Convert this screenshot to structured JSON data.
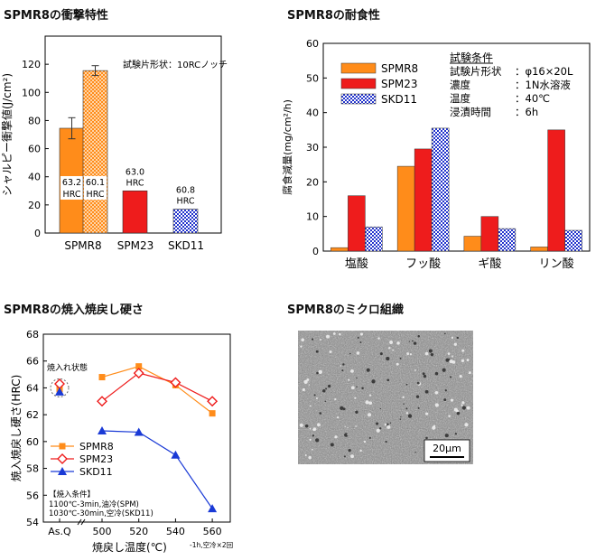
{
  "page_titles": [
    "SPMR8の衝撃特性",
    "SPMR8の耐食性",
    "SPMR8の焼入焼戻し硬さ",
    "SPMR8のミクロ組織"
  ],
  "chart_data": [
    {
      "type": "bar",
      "title": "SPMR8の衝撃特性",
      "ylabel": "シャルピー衝撃値(J/cm²)",
      "xlabel": "",
      "ylim": [
        0,
        140
      ],
      "yticks": [
        "0",
        "20",
        "40",
        "60",
        "80",
        "100",
        "120"
      ],
      "categories": [
        "SPMR8",
        "SPM23",
        "SKD11"
      ],
      "bars": [
        {
          "category": "SPMR8",
          "value": 74.5,
          "error": 7.5,
          "style": "orange",
          "hrc_line1": "63.2",
          "hrc_line2": "HRC"
        },
        {
          "category": "SPMR8",
          "value": 115.5,
          "error": 3.5,
          "style": "orange-hatched",
          "hrc_line1": "60.1",
          "hrc_line2": "HRC"
        },
        {
          "category": "SPM23",
          "value": 30,
          "style": "red",
          "hrc_line1": "63.0",
          "hrc_line2": "HRC"
        },
        {
          "category": "SKD11",
          "value": 17,
          "style": "blue-checker",
          "hrc_line1": "60.8",
          "hrc_line2": "HRC"
        }
      ],
      "annotation": "試験片形状：10RCノッチ",
      "colors": {
        "orange": "#ff8c1a",
        "red": "#ee1c1c",
        "blue": "#3344cc"
      }
    },
    {
      "type": "bar",
      "title": "SPMR8の耐食性",
      "ylabel": "腐食減量(mg/cm²/h)",
      "xlabel": "",
      "ylim": [
        0,
        60
      ],
      "yticks": [
        "0",
        "10",
        "20",
        "30",
        "40",
        "50",
        "60"
      ],
      "categories": [
        "塩酸",
        "フッ酸",
        "ギ酸",
        "リン酸"
      ],
      "series": [
        {
          "name": "SPMR8",
          "values": [
            1.0,
            24.5,
            4.3,
            1.2
          ],
          "style": "orange"
        },
        {
          "name": "SPM23",
          "values": [
            16.0,
            29.5,
            10.0,
            35.0
          ],
          "style": "red"
        },
        {
          "name": "SKD11",
          "values": [
            7.0,
            35.5,
            6.5,
            6.0
          ],
          "style": "blue-checker"
        }
      ],
      "conditions": {
        "heading": "試験条件",
        "rows": [
          {
            "label": "試験片形状",
            "value": "：φ16×20L"
          },
          {
            "label": "濃度",
            "value": "：1N水溶液"
          },
          {
            "label": "温度",
            "value": "：40℃"
          },
          {
            "label": "浸漬時間",
            "value": "：6h"
          }
        ]
      },
      "legend_position": "top-left"
    },
    {
      "type": "line",
      "title": "SPMR8の焼入焼戻し硬さ",
      "ylabel": "焼入焼戻し硬さ(HRC)",
      "xlabel": "焼戻し温度(℃)",
      "xlabel_suffix": "-1h,空冷×2回",
      "ylim": [
        54,
        68
      ],
      "yticks": [
        "54",
        "56",
        "58",
        "60",
        "62",
        "64",
        "66",
        "68"
      ],
      "xticks": [
        "As.Q",
        "500",
        "520",
        "540",
        "560"
      ],
      "x": [
        500,
        520,
        540,
        560
      ],
      "series": [
        {
          "name": "SPMR8",
          "values": [
            64.8,
            65.6,
            64.2,
            62.1
          ],
          "asq": 63.9,
          "marker": "square",
          "color": "#ff8c1a"
        },
        {
          "name": "SPM23",
          "values": [
            63.0,
            65.1,
            64.4,
            63.0
          ],
          "asq": 64.3,
          "marker": "diamond",
          "color": "#ee1c1c"
        },
        {
          "name": "SKD11",
          "values": [
            60.8,
            60.7,
            59.0,
            55.0
          ],
          "asq": 63.7,
          "marker": "triangle",
          "color": "#1a3ad6"
        }
      ],
      "annotation_quenched": "焼入れ状態",
      "quench_conditions": {
        "heading": "【焼入条件】",
        "lines": [
          "1100℃-3min,油冷(SPM)",
          "1030℃-30min,空冷(SKD11)"
        ]
      },
      "legend_position": "bottom-left"
    }
  ],
  "micrograph": {
    "title": "SPMR8のミクロ組織",
    "scale_label": "20μm"
  }
}
